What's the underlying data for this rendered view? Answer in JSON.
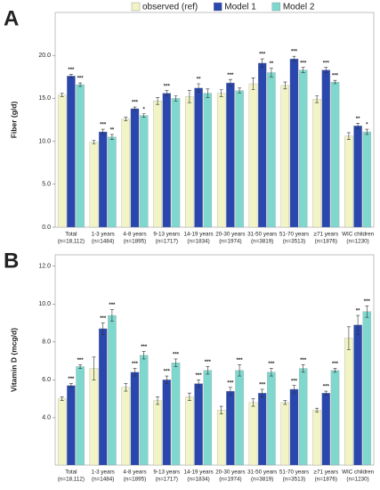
{
  "chart_data": [
    {
      "type": "bar",
      "panel": "A",
      "ylabel": "Fiber (g/d)",
      "categories": [
        [
          "Total",
          "(n=18,112)"
        ],
        [
          "1-3 years",
          "(n=1484)"
        ],
        [
          "4-8 years",
          "(n=1895)"
        ],
        [
          "9-13 years",
          "(n=1717)"
        ],
        [
          "14-19 years",
          "(n=1834)"
        ],
        [
          "20-30 years",
          "(n=1974)"
        ],
        [
          "31-50 years",
          "(n=3819)"
        ],
        [
          "51-70 years",
          "(n=3513)"
        ],
        [
          "≥71 years",
          "(n=1876)"
        ],
        [
          "WIC children",
          "(n=1230)"
        ]
      ],
      "series": [
        {
          "name": "observed (ref)",
          "color": "#f2f4c6",
          "values": [
            15.4,
            9.9,
            12.6,
            14.7,
            15.2,
            15.6,
            16.7,
            16.5,
            14.9,
            10.6
          ],
          "errors": [
            0.2,
            0.2,
            0.2,
            0.4,
            0.7,
            0.4,
            0.7,
            0.4,
            0.4,
            0.4
          ],
          "stars": [
            null,
            null,
            null,
            null,
            null,
            null,
            null,
            null,
            null,
            null
          ]
        },
        {
          "name": "Model 1",
          "color": "#2947ad",
          "values": [
            17.6,
            11.1,
            13.8,
            15.6,
            16.2,
            16.8,
            19.1,
            19.6,
            18.3,
            11.8
          ],
          "errors": [
            0.2,
            0.3,
            0.2,
            0.3,
            0.5,
            0.4,
            0.5,
            0.3,
            0.3,
            0.3
          ],
          "stars": [
            "***",
            "***",
            "***",
            "***",
            "**",
            "***",
            "***",
            "***",
            "***",
            "**"
          ]
        },
        {
          "name": "Model 2",
          "color": "#7fd8ce",
          "values": [
            16.6,
            10.5,
            13.0,
            15.0,
            15.6,
            15.9,
            18.0,
            18.3,
            16.9,
            11.1
          ],
          "errors": [
            0.2,
            0.3,
            0.2,
            0.3,
            0.5,
            0.3,
            0.5,
            0.3,
            0.2,
            0.3
          ],
          "stars": [
            "***",
            "**",
            "*",
            null,
            null,
            null,
            "**",
            "***",
            "***",
            "*"
          ]
        }
      ],
      "ylim": [
        0,
        25
      ],
      "yticks": [
        {
          "value": 0,
          "label": "0.0"
        },
        {
          "value": 5,
          "label": "5.0"
        },
        {
          "value": 10,
          "label": "10.0"
        },
        {
          "value": 15,
          "label": "15.0"
        },
        {
          "value": 20,
          "label": "20.0"
        }
      ]
    },
    {
      "type": "bar",
      "panel": "B",
      "ylabel": "Vitamin D (mcg/d)",
      "categories": [
        [
          "Total",
          "(n=18,112)"
        ],
        [
          "1-3 years",
          "(n=1484)"
        ],
        [
          "4-8 years",
          "(n=1895)"
        ],
        [
          "9-13 years",
          "(n=1717)"
        ],
        [
          "14-19 years",
          "(n=1834)"
        ],
        [
          "20-30 years",
          "(n=1974)"
        ],
        [
          "31-50 years",
          "(n=3819)"
        ],
        [
          "51-70 years",
          "(n=3513)"
        ],
        [
          "≥71 years",
          "(n=1876)"
        ],
        [
          "WIC children",
          "(n=1230)"
        ]
      ],
      "series": [
        {
          "name": "observed (ref)",
          "color": "#f2f4c6",
          "values": [
            5.0,
            6.6,
            5.6,
            4.9,
            5.1,
            4.4,
            4.8,
            4.8,
            4.4,
            8.2
          ],
          "errors": [
            0.1,
            0.6,
            0.2,
            0.2,
            0.2,
            0.2,
            0.2,
            0.1,
            0.1,
            0.6
          ],
          "stars": [
            null,
            null,
            null,
            null,
            null,
            null,
            null,
            null,
            null,
            null
          ]
        },
        {
          "name": "Model 1",
          "color": "#2947ad",
          "values": [
            5.7,
            8.7,
            6.4,
            6.0,
            5.8,
            5.4,
            5.3,
            5.5,
            5.3,
            8.9
          ],
          "errors": [
            0.1,
            0.3,
            0.2,
            0.2,
            0.2,
            0.2,
            0.2,
            0.2,
            0.1,
            0.5
          ],
          "stars": [
            "***",
            "***",
            "***",
            "***",
            "***",
            "***",
            "***",
            "***",
            "***",
            "**"
          ]
        },
        {
          "name": "Model 2",
          "color": "#7fd8ce",
          "values": [
            6.7,
            9.4,
            7.3,
            6.9,
            6.5,
            6.5,
            6.4,
            6.6,
            6.5,
            9.6
          ],
          "errors": [
            0.1,
            0.3,
            0.2,
            0.2,
            0.2,
            0.3,
            0.2,
            0.2,
            0.1,
            0.3
          ],
          "stars": [
            "***",
            "***",
            "***",
            "***",
            "***",
            "***",
            "***",
            "***",
            "***",
            "***"
          ]
        }
      ],
      "ylim": [
        1.5,
        12.6
      ],
      "yticks": [
        {
          "value": 4,
          "label": "4.0"
        },
        {
          "value": 6,
          "label": "6.0"
        },
        {
          "value": 8,
          "label": "8.0"
        },
        {
          "value": 10,
          "label": "10.0"
        },
        {
          "value": 12,
          "label": "12.0"
        }
      ]
    }
  ]
}
